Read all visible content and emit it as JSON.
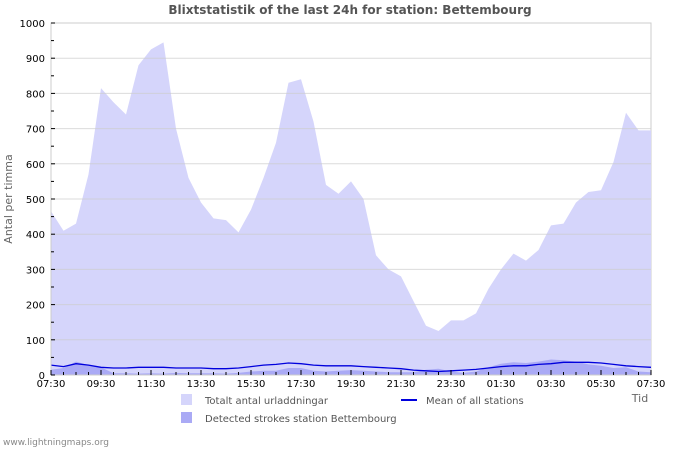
{
  "title": "Blixtstatistik of the last 24h for station: Bettembourg",
  "watermark": "www.lightningmaps.org",
  "chart_data": {
    "type": "area",
    "title": "Blixtstatistik of the last 24h for station: Bettembourg",
    "xlabel": "Tid",
    "ylabel": "Antal per timma",
    "ylim": [
      0,
      1000
    ],
    "yticks": [
      0,
      100,
      200,
      300,
      400,
      500,
      600,
      700,
      800,
      900,
      1000
    ],
    "xtick_labels": [
      "07:30",
      "09:30",
      "11:30",
      "13:30",
      "15:30",
      "17:30",
      "19:30",
      "21:30",
      "23:30",
      "01:30",
      "03:30",
      "05:30",
      "07:30"
    ],
    "grid": true,
    "legend_position": "bottom",
    "x": [
      "07:30",
      "08:00",
      "08:30",
      "09:00",
      "09:30",
      "10:00",
      "10:30",
      "11:00",
      "11:30",
      "12:00",
      "12:30",
      "13:00",
      "13:30",
      "14:00",
      "14:30",
      "15:00",
      "15:30",
      "16:00",
      "16:30",
      "17:00",
      "17:30",
      "18:00",
      "18:30",
      "19:00",
      "19:30",
      "20:00",
      "20:30",
      "21:00",
      "21:30",
      "22:00",
      "22:30",
      "23:00",
      "23:30",
      "00:00",
      "00:30",
      "01:00",
      "01:30",
      "02:00",
      "02:30",
      "03:00",
      "03:30",
      "04:00",
      "04:30",
      "05:00",
      "05:30",
      "06:00",
      "06:30",
      "07:00",
      "07:30"
    ],
    "series": [
      {
        "name": "Totalt antal urladdningar",
        "kind": "area",
        "color": "#d5d5fb",
        "values": [
          465,
          410,
          430,
          570,
          815,
          775,
          740,
          880,
          925,
          945,
          700,
          560,
          490,
          445,
          440,
          405,
          470,
          560,
          660,
          830,
          840,
          720,
          540,
          515,
          550,
          500,
          340,
          300,
          280,
          210,
          140,
          125,
          155,
          155,
          175,
          245,
          300,
          345,
          325,
          355,
          425,
          430,
          490,
          520,
          525,
          605,
          745,
          695,
          695
        ]
      },
      {
        "name": "Detected strokes station Bettembourg",
        "kind": "area",
        "color": "#aaaaf5",
        "values": [
          15,
          20,
          38,
          28,
          22,
          5,
          5,
          4,
          5,
          4,
          6,
          5,
          5,
          5,
          4,
          6,
          10,
          12,
          12,
          20,
          20,
          12,
          10,
          12,
          14,
          12,
          10,
          8,
          8,
          8,
          15,
          18,
          10,
          6,
          10,
          22,
          32,
          36,
          34,
          38,
          44,
          42,
          38,
          30,
          26,
          20,
          22,
          10,
          8
        ]
      },
      {
        "name": "Mean of all stations",
        "kind": "line",
        "color": "#0000dd",
        "values": [
          28,
          24,
          32,
          28,
          22,
          20,
          20,
          22,
          22,
          22,
          20,
          20,
          20,
          18,
          18,
          20,
          24,
          28,
          30,
          34,
          32,
          28,
          26,
          26,
          26,
          24,
          22,
          20,
          18,
          14,
          12,
          10,
          12,
          14,
          16,
          20,
          24,
          26,
          26,
          30,
          32,
          36,
          36,
          36,
          34,
          30,
          26,
          24,
          22
        ]
      }
    ]
  },
  "legend": [
    {
      "label": "Totalt antal urladdningar",
      "swatch": "box",
      "color": "#d5d5fb"
    },
    {
      "label": "Mean of all stations",
      "swatch": "line",
      "color": "#0000dd"
    },
    {
      "label": "Detected strokes station Bettembourg",
      "swatch": "box",
      "color": "#aaaaf5"
    }
  ]
}
